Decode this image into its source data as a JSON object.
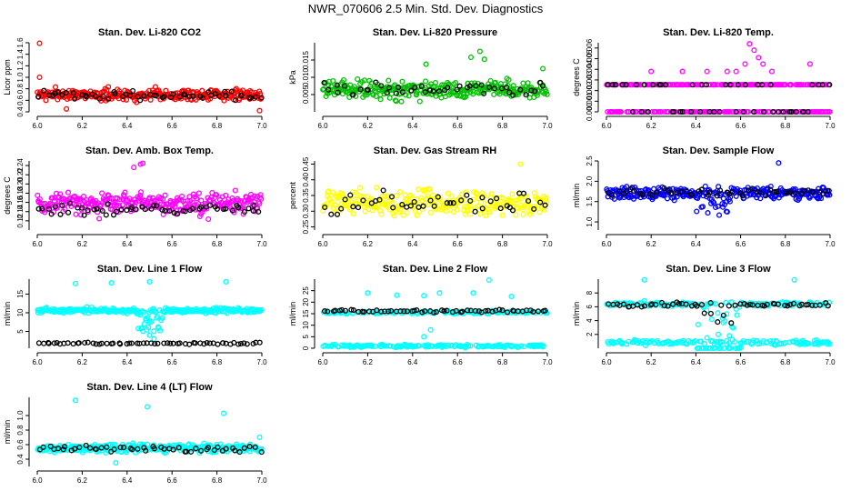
{
  "page": {
    "title": "NWR_070606  2.5 Min. Std. Dev. Diagnostics"
  },
  "chart_data": [
    {
      "type": "scatter",
      "title": "Stan. Dev. Li-820 CO2",
      "ylabel": "Licor ppm",
      "xlim": [
        6.0,
        7.0
      ],
      "ylim": [
        0.4,
        1.6
      ],
      "xticks": [
        "6.0",
        "6.2",
        "6.4",
        "6.6",
        "6.8",
        "7.0"
      ],
      "yticks": [
        "0.4",
        "0.6",
        "0.8",
        "1.0",
        "1.2",
        "1.4",
        "1.6"
      ],
      "colors": [
        "#ff0000",
        "#000000"
      ],
      "series": [
        {
          "values": {
            "base": 0.7,
            "spread": 0.09,
            "n": 300,
            "extras": [
              [
                6.01,
                1.59
              ],
              [
                6.01,
                1.0
              ],
              [
                6.99,
                0.42
              ],
              [
                6.13,
                0.45
              ]
            ]
          }
        },
        {
          "values": {
            "base": 0.68,
            "spread": 0.07,
            "n": 55
          }
        }
      ]
    },
    {
      "type": "scatter",
      "title": "Stan. Dev. Li-820 Pressure",
      "ylabel": "kPa",
      "xlim": [
        6.0,
        7.0
      ],
      "ylim": [
        0.0,
        0.02
      ],
      "xticks": [
        "6.0",
        "6.2",
        "6.4",
        "6.6",
        "6.8",
        "7.0"
      ],
      "yticks": [
        "0.005",
        "0.010",
        "0.015"
      ],
      "colors": [
        "#00c000",
        "#000000"
      ],
      "series": [
        {
          "values": {
            "base": 0.0065,
            "spread": 0.0025,
            "n": 300,
            "extras": [
              [
                6.7,
                0.0175
              ],
              [
                6.66,
                0.0158
              ],
              [
                6.72,
                0.0152
              ],
              [
                6.98,
                0.0125
              ],
              [
                6.46,
                0.0138
              ]
            ]
          }
        },
        {
          "values": {
            "base": 0.0065,
            "spread": 0.0018,
            "n": 45
          }
        }
      ]
    },
    {
      "type": "scatter",
      "title": "Stan. Dev. Li-820 Temp.",
      "ylabel": "degrees C",
      "xlim": [
        6.0,
        7.0
      ],
      "ylim": [
        0.0,
        0.0065
      ],
      "xticks": [
        "6.0",
        "6.2",
        "6.4",
        "6.6",
        "6.8",
        "7.0"
      ],
      "yticks": [
        "0.000",
        "0.001",
        "0.002",
        "0.003",
        "0.004",
        "0.005",
        "0.006"
      ],
      "colors": [
        "#ff00ff",
        "#000000"
      ],
      "series": [
        {
          "values": {
            "levels": [
              0.0,
              0.00255
            ],
            "n": 300,
            "extras": [
              [
                6.64,
                0.0064
              ],
              [
                6.66,
                0.0058
              ],
              [
                6.68,
                0.0051
              ],
              [
                6.7,
                0.0045
              ],
              [
                6.62,
                0.0045
              ],
              [
                6.74,
                0.0038
              ],
              [
                6.58,
                0.0038
              ],
              [
                6.54,
                0.0038
              ],
              [
                6.45,
                0.0038
              ],
              [
                6.91,
                0.0045
              ],
              [
                6.2,
                0.0038
              ],
              [
                6.34,
                0.0038
              ]
            ]
          }
        },
        {
          "values": {
            "levels": [
              0.0,
              0.00255
            ],
            "n": 50
          }
        }
      ]
    },
    {
      "type": "scatter",
      "title": "Stan. Dev. Amb. Box Temp.",
      "ylabel": "degrees C",
      "xlim": [
        6.0,
        7.0
      ],
      "ylim": [
        0.1,
        0.25
      ],
      "xticks": [
        "6.0",
        "6.2",
        "6.4",
        "6.6",
        "6.8",
        "7.0"
      ],
      "yticks": [
        "0.12",
        "0.14",
        "0.16",
        "0.18",
        "0.20",
        "0.22",
        "0.24"
      ],
      "colors": [
        "#ff00ff",
        "#000000"
      ],
      "series": [
        {
          "values": {
            "base": 0.158,
            "spread": 0.022,
            "n": 300,
            "extras": [
              [
                6.47,
                0.245
              ],
              [
                6.46,
                0.243
              ],
              [
                6.43,
                0.236
              ]
            ]
          }
        },
        {
          "values": {
            "base": 0.145,
            "spread": 0.012,
            "n": 55
          }
        }
      ]
    },
    {
      "type": "scatter",
      "title": "Stan. Dev. Gas Stream RH",
      "ylabel": "percent",
      "xlim": [
        6.0,
        7.0
      ],
      "ylim": [
        0.24,
        0.46
      ],
      "xticks": [
        "6.0",
        "6.2",
        "6.4",
        "6.6",
        "6.8",
        "7.0"
      ],
      "yticks": [
        "0.25",
        "0.30",
        "0.35",
        "0.40",
        "0.45"
      ],
      "colors": [
        "#ffff00",
        "#000000"
      ],
      "series": [
        {
          "values": {
            "base": 0.325,
            "spread": 0.038,
            "n": 280,
            "extras": [
              [
                6.88,
                0.45
              ]
            ]
          }
        },
        {
          "values": {
            "base": 0.325,
            "spread": 0.03,
            "n": 45
          }
        }
      ]
    },
    {
      "type": "scatter",
      "title": "Stan. Dev. Sample Flow",
      "ylabel": "ml/min",
      "xlim": [
        6.0,
        7.0
      ],
      "ylim": [
        0.8,
        2.5
      ],
      "xticks": [
        "6.0",
        "6.2",
        "6.4",
        "6.6",
        "6.8",
        "7.0"
      ],
      "yticks": [
        "1.0",
        "1.5",
        "2.0",
        "2.5"
      ],
      "colors": [
        "#0000ff",
        "#000000"
      ],
      "series": [
        {
          "values": {
            "base": 1.7,
            "spread": 0.15,
            "n": 300,
            "dip": [
              6.4,
              6.56,
              0.45
            ],
            "extras": [
              [
                6.77,
                2.45
              ]
            ]
          }
        },
        {
          "values": {
            "base": 1.72,
            "spread": 0.1,
            "n": 50
          }
        }
      ]
    },
    {
      "type": "scatter",
      "title": "Stan. Dev. Line 1 Flow",
      "ylabel": "ml/min",
      "xlim": [
        6.0,
        7.0
      ],
      "ylim": [
        0.5,
        19.0
      ],
      "xticks": [
        "6.0",
        "6.2",
        "6.4",
        "6.6",
        "6.8",
        "7.0"
      ],
      "yticks": [
        "5",
        "10",
        "15"
      ],
      "colors": [
        "#00ffff",
        "#000000"
      ],
      "series": [
        {
          "values": {
            "base": 10.6,
            "spread": 0.6,
            "n": 300,
            "dip": [
              6.44,
              6.56,
              6.0
            ],
            "extras": [
              [
                6.17,
                17.8
              ],
              [
                6.33,
                18.0
              ],
              [
                6.5,
                18.3
              ],
              [
                6.84,
                18.3
              ],
              [
                6.5,
                4.0
              ],
              [
                6.52,
                3.0
              ]
            ]
          }
        },
        {
          "values": {
            "base": 1.8,
            "spread": 0.2,
            "n": 60
          }
        }
      ]
    },
    {
      "type": "scatter",
      "title": "Stan. Dev. Line 2 Flow",
      "ylabel": "ml/min",
      "xlim": [
        6.0,
        7.0
      ],
      "ylim": [
        0.0,
        30.0
      ],
      "xticks": [
        "6.0",
        "6.2",
        "6.4",
        "6.6",
        "6.8",
        "7.0"
      ],
      "yticks": [
        "0",
        "5",
        "10",
        "15",
        "20",
        "25"
      ],
      "colors": [
        "#00ffff",
        "#000000"
      ],
      "series": [
        {
          "values": {
            "levels": [
              15.6,
              1.0
            ],
            "spread": 0.6,
            "n": 300,
            "extras": [
              [
                6.2,
                24.0
              ],
              [
                6.33,
                23.0
              ],
              [
                6.45,
                22.8
              ],
              [
                6.52,
                24.0
              ],
              [
                6.67,
                24.0
              ],
              [
                6.74,
                29.6
              ],
              [
                6.84,
                22.5
              ],
              [
                6.45,
                5.0
              ],
              [
                6.48,
                8.0
              ]
            ]
          }
        },
        {
          "values": {
            "base": 16.2,
            "spread": 0.5,
            "n": 60,
            "dip": [
              6.42,
              6.5,
              8.0
            ]
          }
        }
      ]
    },
    {
      "type": "scatter",
      "title": "Stan. Dev. Line 3 Flow",
      "ylabel": "ml/min",
      "xlim": [
        6.0,
        7.0
      ],
      "ylim": [
        0.0,
        10.0
      ],
      "xticks": [
        "6.0",
        "6.2",
        "6.4",
        "6.6",
        "6.8",
        "7.0"
      ],
      "yticks": [
        "2",
        "4",
        "6",
        "8"
      ],
      "colors": [
        "#00ffff",
        "#000000"
      ],
      "series": [
        {
          "values": {
            "levels": [
              6.4,
              0.8
            ],
            "spread": 0.3,
            "n": 320,
            "dip": [
              6.4,
              6.6,
              3.5
            ],
            "extras": [
              [
                6.17,
                9.9
              ],
              [
                6.84,
                9.9
              ],
              [
                6.45,
                1.5
              ],
              [
                6.5,
                2.0
              ],
              [
                6.55,
                1.8
              ]
            ]
          }
        },
        {
          "values": {
            "base": 6.3,
            "spread": 0.3,
            "n": 60,
            "dip": [
              6.4,
              6.56,
              3.5
            ]
          }
        }
      ]
    },
    {
      "type": "scatter",
      "title": "Stan. Dev. Line 4 (LT) Flow",
      "ylabel": "ml/min",
      "xlim": [
        6.0,
        7.0
      ],
      "ylim": [
        0.3,
        1.25
      ],
      "xticks": [
        "6.0",
        "6.2",
        "6.4",
        "6.6",
        "6.8",
        "7.0"
      ],
      "yticks": [
        "0.4",
        "0.6",
        "0.8",
        "1.0"
      ],
      "colors": [
        "#00ffff",
        "#000000"
      ],
      "series": [
        {
          "values": {
            "base": 0.55,
            "spread": 0.05,
            "n": 300,
            "extras": [
              [
                6.17,
                1.21
              ],
              [
                6.49,
                1.12
              ],
              [
                6.83,
                1.03
              ],
              [
                6.35,
                0.35
              ],
              [
                6.99,
                0.7
              ]
            ]
          }
        },
        {
          "values": {
            "base": 0.54,
            "spread": 0.04,
            "n": 50
          }
        }
      ]
    }
  ]
}
